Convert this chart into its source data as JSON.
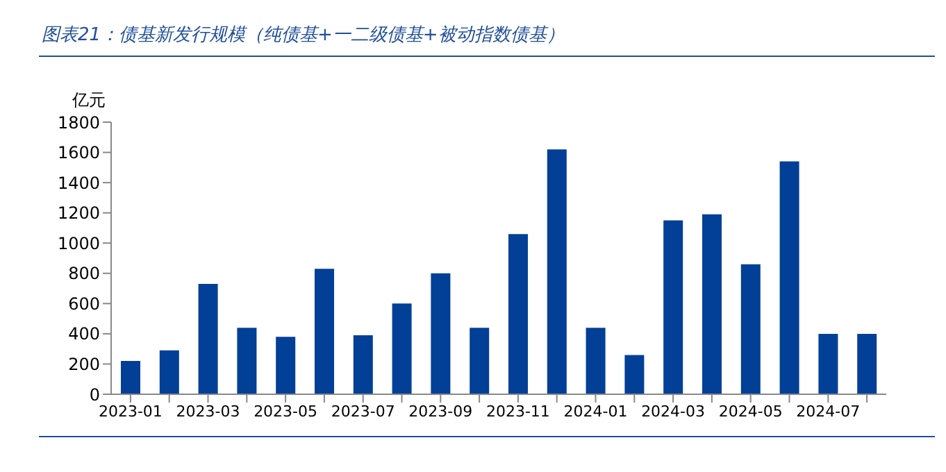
{
  "chart_data": {
    "type": "bar",
    "title": "图表21：债基新发行规模（纯债基+一二级债基+被动指数债基）",
    "ylabel": "亿元",
    "categories": [
      "2023-01",
      null,
      "2023-03",
      null,
      "2023-05",
      null,
      "2023-07",
      null,
      "2023-09",
      null,
      "2023-11",
      null,
      "2024-01",
      null,
      "2024-03",
      null,
      "2024-05",
      null,
      "2024-07",
      null
    ],
    "values": [
      220,
      290,
      730,
      440,
      380,
      830,
      390,
      600,
      800,
      440,
      1060,
      1620,
      440,
      260,
      1150,
      1190,
      860,
      1540,
      400,
      400
    ],
    "color": "#023f96",
    "ylim": [
      0,
      1800
    ],
    "yticks": [
      0,
      200,
      400,
      600,
      800,
      1000,
      1200,
      1400,
      1600,
      1800
    ],
    "grid": false
  }
}
